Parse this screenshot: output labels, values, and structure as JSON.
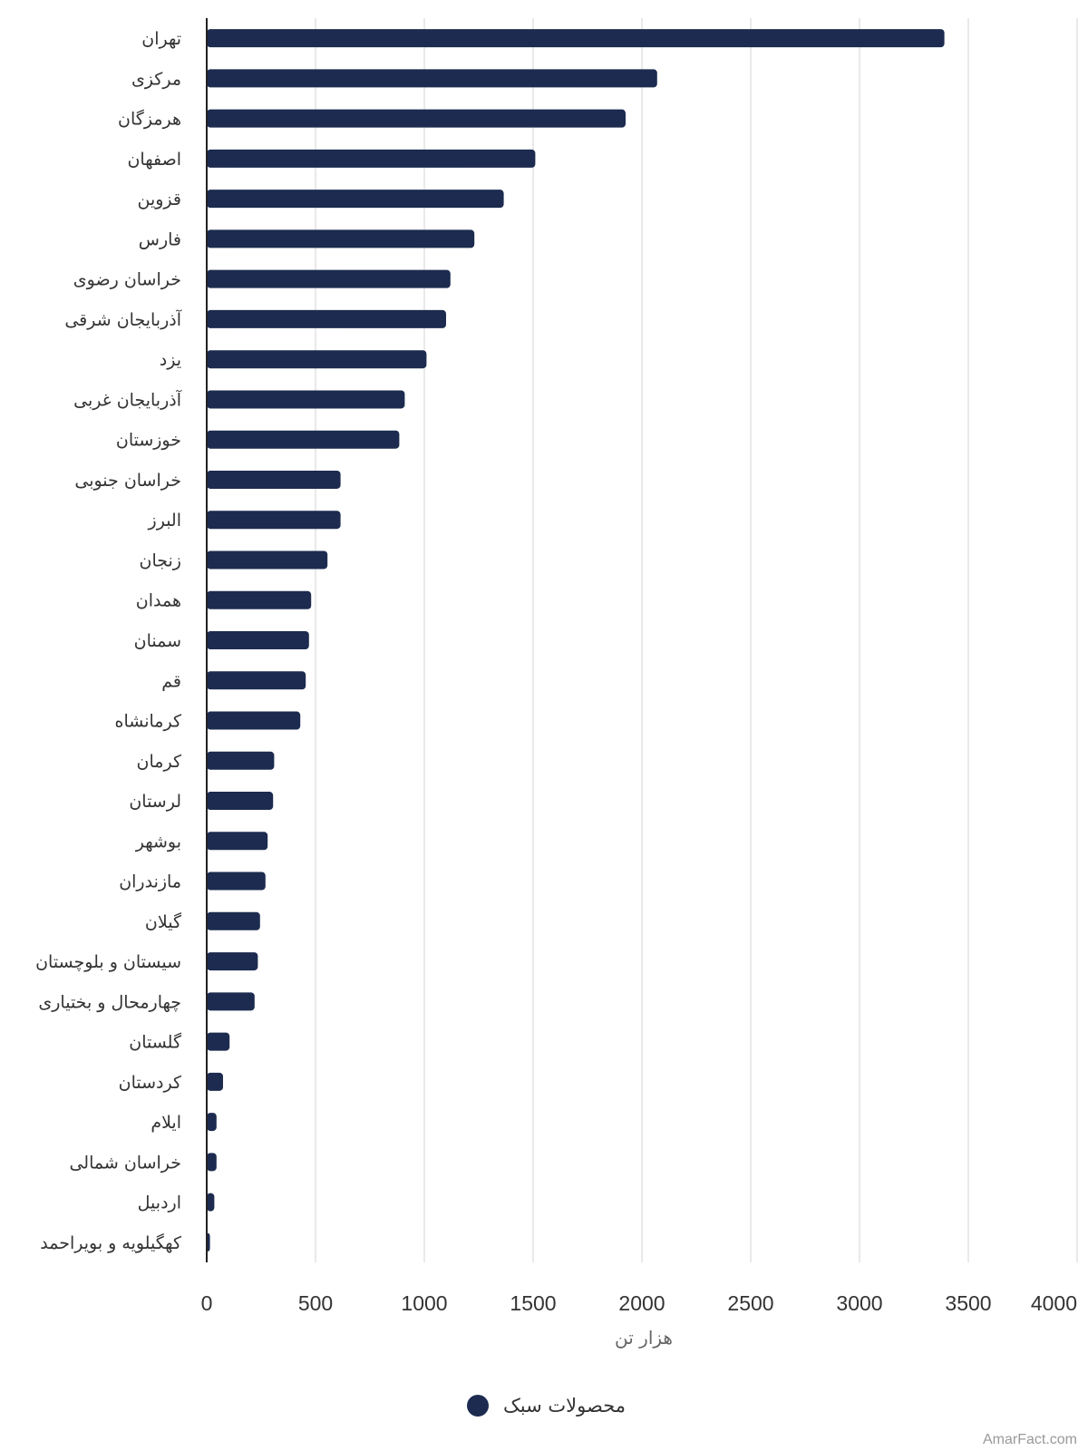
{
  "chart_data": {
    "type": "bar",
    "orientation": "horizontal",
    "categories": [
      "تهران",
      "مرکزی",
      "هرمزگان",
      "اصفهان",
      "قزوین",
      "فارس",
      "خراسان رضوی",
      "آذربایجان شرقی",
      "یزد",
      "آذربایجان غربی",
      "خوزستان",
      "خراسان جنوبی",
      "البرز",
      "زنجان",
      "همدان",
      "سمنان",
      "قم",
      "کرمانشاه",
      "کرمان",
      "لرستان",
      "بوشهر",
      "مازندران",
      "گیلان",
      "سیستان و بلوچستان",
      "چهارمحال و بختیاری",
      "گلستان",
      "کردستان",
      "ایلام",
      "خراسان شمالی",
      "اردبیل",
      "کهگیلویه و بویراحمد"
    ],
    "series": [
      {
        "name": "محصولات سبک",
        "color": "#1c2b4f",
        "values": [
          3390,
          2070,
          1925,
          1510,
          1365,
          1230,
          1120,
          1100,
          1010,
          910,
          885,
          615,
          615,
          555,
          480,
          470,
          455,
          430,
          310,
          305,
          280,
          270,
          245,
          235,
          220,
          105,
          75,
          45,
          45,
          35,
          15
        ]
      }
    ],
    "xlim": [
      0,
      4000
    ],
    "xticks": [
      "0",
      "500",
      "1000",
      "1500",
      "2000",
      "2500",
      "3000",
      "3500",
      "4000"
    ],
    "xlabel": "هزار تن",
    "grid": true,
    "legend": "bottom-center"
  },
  "credit": "AmarFact.com"
}
